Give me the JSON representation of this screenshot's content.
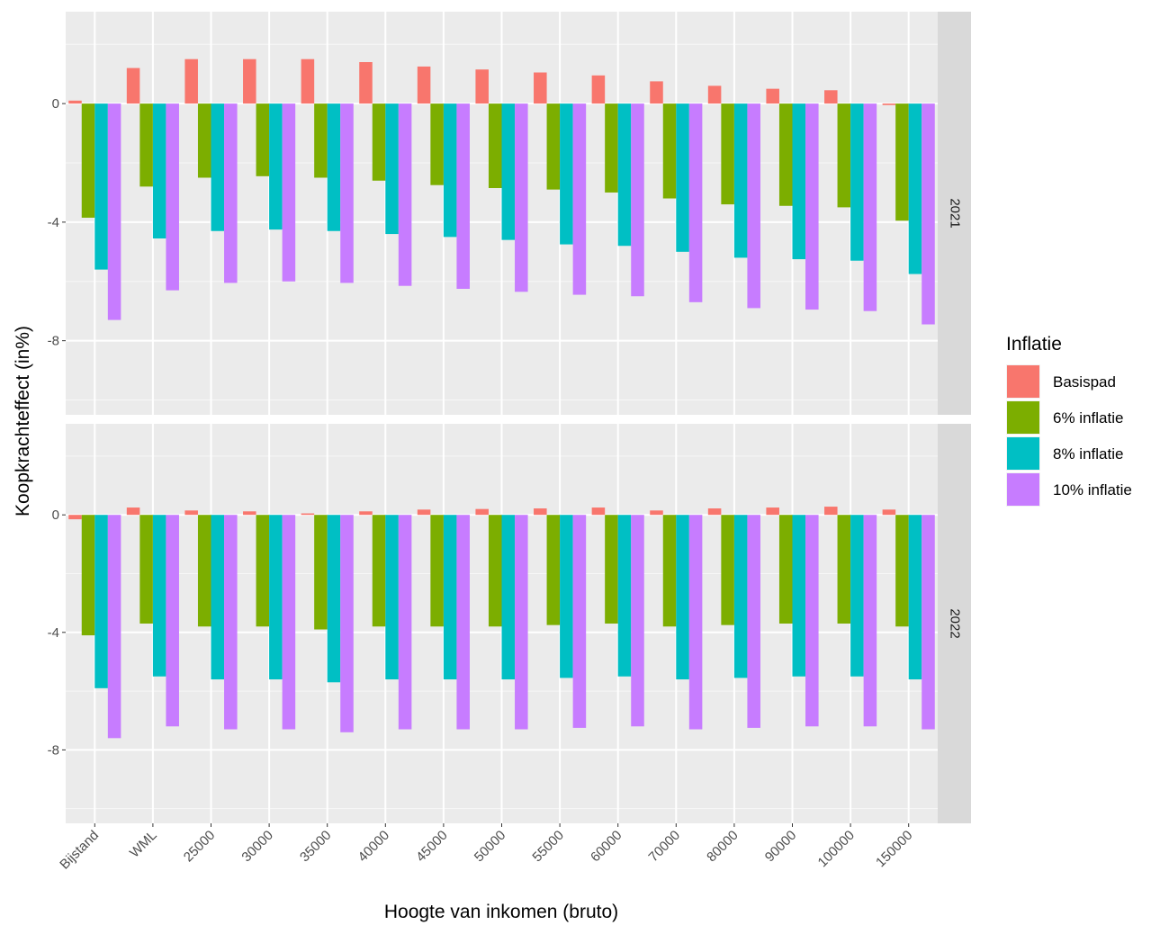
{
  "chart_data": {
    "type": "bar",
    "xlabel": "Hoogte van inkomen (bruto)",
    "ylabel": "Koopkrachteffect (in%)",
    "ylim": [
      -10.5,
      3.1
    ],
    "yticks": [
      0,
      -4,
      -8
    ],
    "ytick_labels": [
      "0",
      "-4",
      "-8"
    ],
    "categories": [
      "Bijstand",
      "WML",
      "25000",
      "30000",
      "35000",
      "40000",
      "45000",
      "50000",
      "55000",
      "60000",
      "70000",
      "80000",
      "90000",
      "100000",
      "150000"
    ],
    "legend": {
      "title": "Inflatie",
      "position": "right",
      "entries": [
        "Basispad",
        "6% inflatie",
        "8% inflatie",
        "10% inflatie"
      ]
    },
    "colors": [
      "#F8766D",
      "#7CAE00",
      "#00BFC4",
      "#C77CFF"
    ],
    "panels": [
      {
        "label": "2021",
        "series": [
          {
            "name": "Basispad",
            "values": [
              0.1,
              1.2,
              1.5,
              1.5,
              1.5,
              1.4,
              1.25,
              1.15,
              1.05,
              0.95,
              0.75,
              0.6,
              0.5,
              0.45,
              -0.05
            ]
          },
          {
            "name": "6% inflatie",
            "values": [
              -3.85,
              -2.8,
              -2.5,
              -2.45,
              -2.5,
              -2.6,
              -2.75,
              -2.85,
              -2.9,
              -3.0,
              -3.2,
              -3.4,
              -3.45,
              -3.5,
              -3.95
            ]
          },
          {
            "name": "8% inflatie",
            "values": [
              -5.6,
              -4.55,
              -4.3,
              -4.25,
              -4.3,
              -4.4,
              -4.5,
              -4.6,
              -4.75,
              -4.8,
              -5.0,
              -5.2,
              -5.25,
              -5.3,
              -5.75
            ]
          },
          {
            "name": "10% inflatie",
            "values": [
              -7.3,
              -6.3,
              -6.05,
              -6.0,
              -6.05,
              -6.15,
              -6.25,
              -6.35,
              -6.45,
              -6.5,
              -6.7,
              -6.9,
              -6.95,
              -7.0,
              -7.45
            ]
          }
        ]
      },
      {
        "label": "2022",
        "series": [
          {
            "name": "Basispad",
            "values": [
              -0.15,
              0.25,
              0.15,
              0.12,
              0.05,
              0.12,
              0.18,
              0.2,
              0.22,
              0.25,
              0.15,
              0.22,
              0.25,
              0.28,
              0.18
            ]
          },
          {
            "name": "6% inflatie",
            "values": [
              -4.1,
              -3.7,
              -3.8,
              -3.8,
              -3.9,
              -3.8,
              -3.8,
              -3.8,
              -3.75,
              -3.7,
              -3.8,
              -3.75,
              -3.7,
              -3.7,
              -3.8
            ]
          },
          {
            "name": "8% inflatie",
            "values": [
              -5.9,
              -5.5,
              -5.6,
              -5.6,
              -5.7,
              -5.6,
              -5.6,
              -5.6,
              -5.55,
              -5.5,
              -5.6,
              -5.55,
              -5.5,
              -5.5,
              -5.6
            ]
          },
          {
            "name": "10% inflatie",
            "values": [
              -7.6,
              -7.2,
              -7.3,
              -7.3,
              -7.4,
              -7.3,
              -7.3,
              -7.3,
              -7.25,
              -7.2,
              -7.3,
              -7.25,
              -7.2,
              -7.2,
              -7.3
            ]
          }
        ]
      }
    ]
  }
}
